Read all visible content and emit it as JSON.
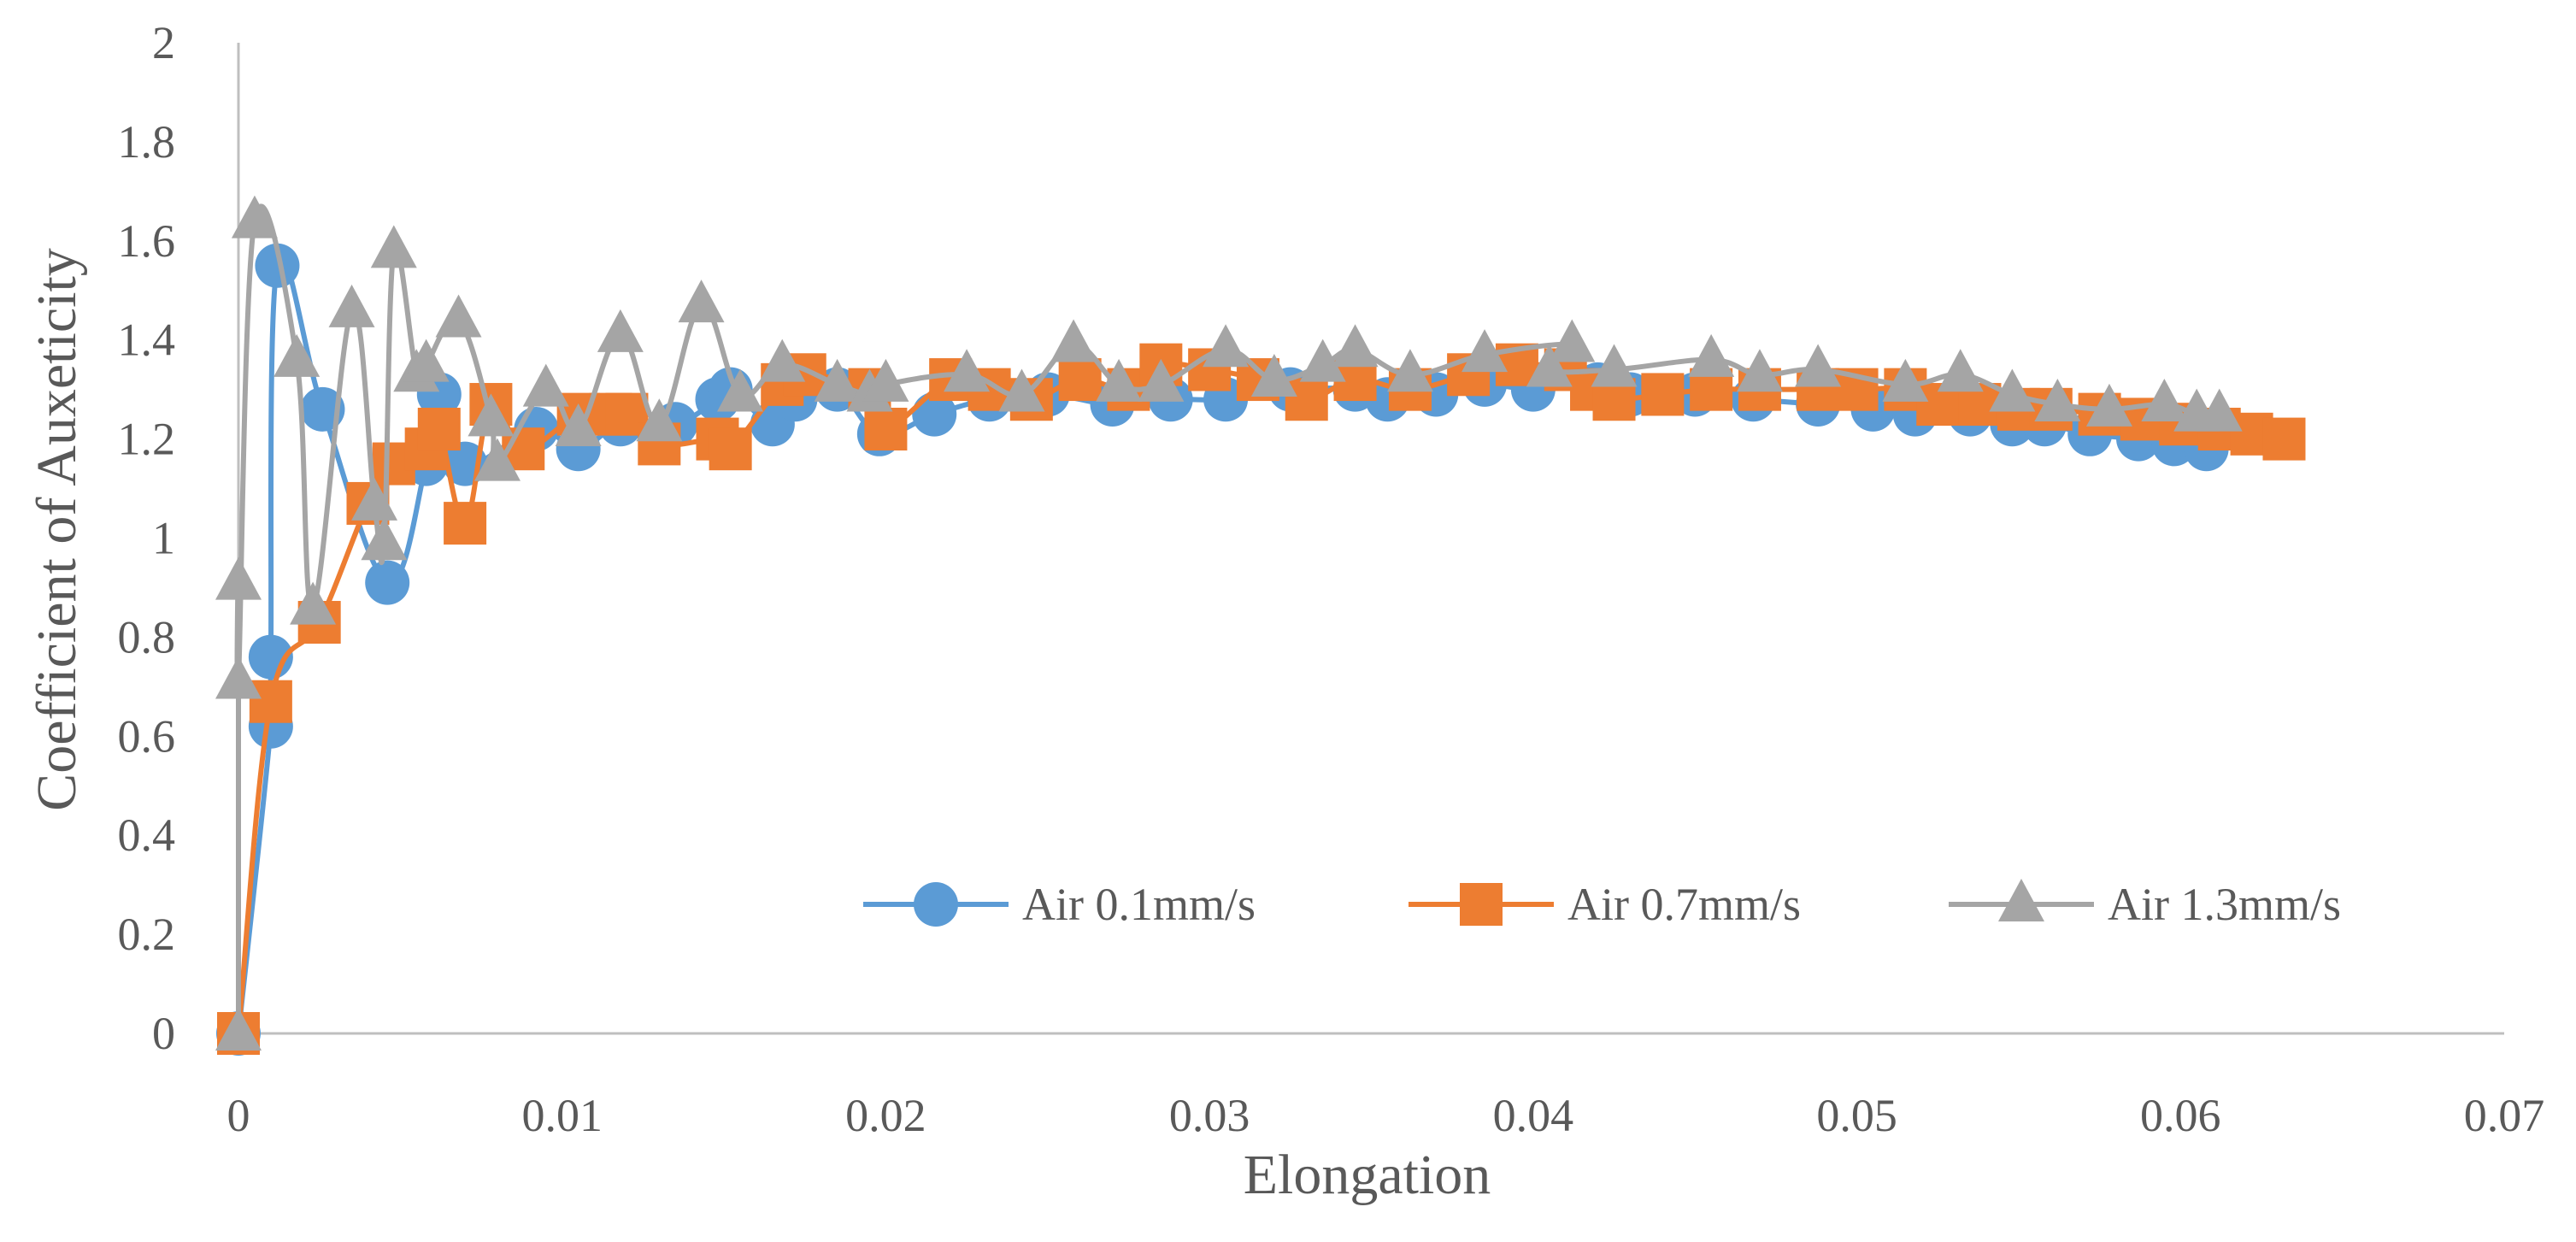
{
  "chart_data": {
    "type": "scatter",
    "title": "",
    "xlabel": "Elongation",
    "ylabel": "Coefficient of Auxeticity",
    "xlim": [
      0,
      0.07
    ],
    "ylim": [
      0,
      2
    ],
    "x_ticks": [
      "0",
      "0.01",
      "0.02",
      "0.03",
      "0.04",
      "0.05",
      "0.06",
      "0.07"
    ],
    "y_ticks": [
      "0",
      "0.2",
      "0.4",
      "0.6",
      "0.8",
      "1",
      "1.2",
      "1.4",
      "1.6",
      "1.8",
      "2"
    ],
    "grid": false,
    "legend_position": "bottom-right",
    "series": [
      {
        "name": "Air 0.1mm/s",
        "color": "#5B9BD5",
        "marker": "circle",
        "points": [
          [
            0,
            0
          ],
          [
            0.001,
            0.62
          ],
          [
            0.001,
            0.76
          ],
          [
            0.0012,
            1.55
          ],
          [
            0.0026,
            1.26
          ],
          [
            0.0046,
            0.91
          ],
          [
            0.0058,
            1.15
          ],
          [
            0.0062,
            1.29
          ],
          [
            0.007,
            1.15
          ],
          [
            0.0092,
            1.22
          ],
          [
            0.0105,
            1.18
          ],
          [
            0.0118,
            1.23
          ],
          [
            0.0135,
            1.23
          ],
          [
            0.0148,
            1.28
          ],
          [
            0.0152,
            1.3
          ],
          [
            0.0165,
            1.23
          ],
          [
            0.0172,
            1.28
          ],
          [
            0.0185,
            1.3
          ],
          [
            0.0198,
            1.21
          ],
          [
            0.0215,
            1.25
          ],
          [
            0.0232,
            1.28
          ],
          [
            0.025,
            1.29
          ],
          [
            0.027,
            1.27
          ],
          [
            0.0288,
            1.28
          ],
          [
            0.0305,
            1.28
          ],
          [
            0.0325,
            1.3
          ],
          [
            0.0345,
            1.3
          ],
          [
            0.0355,
            1.28
          ],
          [
            0.037,
            1.29
          ],
          [
            0.0385,
            1.31
          ],
          [
            0.04,
            1.3
          ],
          [
            0.042,
            1.31
          ],
          [
            0.043,
            1.29
          ],
          [
            0.045,
            1.29
          ],
          [
            0.0468,
            1.28
          ],
          [
            0.0488,
            1.27
          ],
          [
            0.0505,
            1.26
          ],
          [
            0.0518,
            1.25
          ],
          [
            0.0535,
            1.25
          ],
          [
            0.0548,
            1.23
          ],
          [
            0.0558,
            1.23
          ],
          [
            0.0572,
            1.21
          ],
          [
            0.0587,
            1.2
          ],
          [
            0.0598,
            1.19
          ],
          [
            0.0608,
            1.18
          ]
        ]
      },
      {
        "name": "Air 0.7mm/s",
        "color": "#ED7D31",
        "marker": "square",
        "points": [
          [
            0,
            0
          ],
          [
            0.001,
            0.67
          ],
          [
            0.0025,
            0.83
          ],
          [
            0.004,
            1.07
          ],
          [
            0.0048,
            1.15
          ],
          [
            0.0058,
            1.18
          ],
          [
            0.0062,
            1.22
          ],
          [
            0.007,
            1.03
          ],
          [
            0.0078,
            1.27
          ],
          [
            0.0088,
            1.18
          ],
          [
            0.0105,
            1.25
          ],
          [
            0.0115,
            1.25
          ],
          [
            0.012,
            1.25
          ],
          [
            0.013,
            1.19
          ],
          [
            0.0148,
            1.2
          ],
          [
            0.0152,
            1.18
          ],
          [
            0.0168,
            1.31
          ],
          [
            0.0175,
            1.33
          ],
          [
            0.0195,
            1.3
          ],
          [
            0.02,
            1.22
          ],
          [
            0.022,
            1.32
          ],
          [
            0.0232,
            1.3
          ],
          [
            0.0245,
            1.28
          ],
          [
            0.026,
            1.32
          ],
          [
            0.0275,
            1.3
          ],
          [
            0.0285,
            1.35
          ],
          [
            0.03,
            1.34
          ],
          [
            0.0315,
            1.32
          ],
          [
            0.033,
            1.28
          ],
          [
            0.0345,
            1.32
          ],
          [
            0.0362,
            1.3
          ],
          [
            0.038,
            1.33
          ],
          [
            0.0395,
            1.35
          ],
          [
            0.041,
            1.34
          ],
          [
            0.0418,
            1.3
          ],
          [
            0.0425,
            1.28
          ],
          [
            0.044,
            1.29
          ],
          [
            0.0455,
            1.3
          ],
          [
            0.047,
            1.3
          ],
          [
            0.0488,
            1.3
          ],
          [
            0.05,
            1.3
          ],
          [
            0.0515,
            1.3
          ],
          [
            0.0525,
            1.27
          ],
          [
            0.0538,
            1.27
          ],
          [
            0.055,
            1.26
          ],
          [
            0.056,
            1.26
          ],
          [
            0.0575,
            1.25
          ],
          [
            0.0588,
            1.24
          ],
          [
            0.06,
            1.23
          ],
          [
            0.0612,
            1.22
          ],
          [
            0.0622,
            1.21
          ],
          [
            0.0632,
            1.2
          ]
        ]
      },
      {
        "name": "Air 1.3mm/s",
        "color": "#A5A5A5",
        "marker": "triangle",
        "points": [
          [
            0,
            0
          ],
          [
            0,
            0.91
          ],
          [
            0,
            0.71
          ],
          [
            0.0005,
            1.64
          ],
          [
            0.0018,
            1.36
          ],
          [
            0.0023,
            0.86
          ],
          [
            0.0035,
            1.46
          ],
          [
            0.0042,
            1.07
          ],
          [
            0.0045,
            0.99
          ],
          [
            0.0048,
            1.58
          ],
          [
            0.0055,
            1.33
          ],
          [
            0.0058,
            1.35
          ],
          [
            0.0068,
            1.44
          ],
          [
            0.0078,
            1.24
          ],
          [
            0.008,
            1.15
          ],
          [
            0.0095,
            1.3
          ],
          [
            0.0105,
            1.22
          ],
          [
            0.0118,
            1.41
          ],
          [
            0.013,
            1.23
          ],
          [
            0.0143,
            1.47
          ],
          [
            0.0155,
            1.29
          ],
          [
            0.0168,
            1.35
          ],
          [
            0.0185,
            1.31
          ],
          [
            0.0195,
            1.29
          ],
          [
            0.02,
            1.31
          ],
          [
            0.0225,
            1.33
          ],
          [
            0.0242,
            1.29
          ],
          [
            0.0258,
            1.39
          ],
          [
            0.0272,
            1.31
          ],
          [
            0.0285,
            1.31
          ],
          [
            0.0305,
            1.38
          ],
          [
            0.032,
            1.32
          ],
          [
            0.0335,
            1.35
          ],
          [
            0.0345,
            1.38
          ],
          [
            0.0362,
            1.33
          ],
          [
            0.0385,
            1.37
          ],
          [
            0.0412,
            1.39
          ],
          [
            0.0405,
            1.34
          ],
          [
            0.0425,
            1.34
          ],
          [
            0.0455,
            1.36
          ],
          [
            0.047,
            1.33
          ],
          [
            0.0488,
            1.34
          ],
          [
            0.0515,
            1.31
          ],
          [
            0.0532,
            1.33
          ],
          [
            0.0548,
            1.29
          ],
          [
            0.0562,
            1.27
          ],
          [
            0.0578,
            1.26
          ],
          [
            0.0595,
            1.27
          ],
          [
            0.0605,
            1.25
          ],
          [
            0.0612,
            1.25
          ]
        ]
      }
    ]
  }
}
